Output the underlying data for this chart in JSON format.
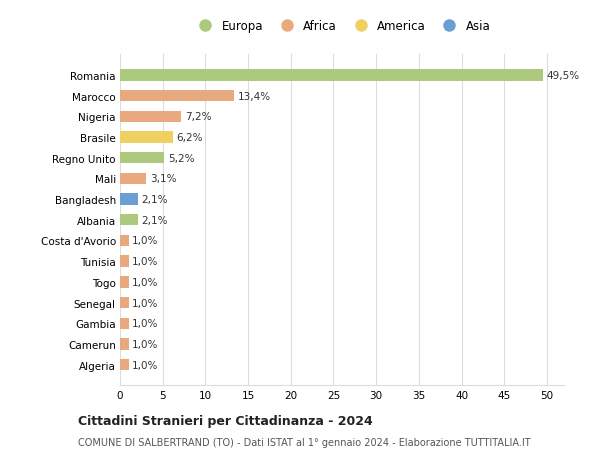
{
  "countries": [
    "Romania",
    "Marocco",
    "Nigeria",
    "Brasile",
    "Regno Unito",
    "Mali",
    "Bangladesh",
    "Albania",
    "Costa d'Avorio",
    "Tunisia",
    "Togo",
    "Senegal",
    "Gambia",
    "Camerun",
    "Algeria"
  ],
  "values": [
    49.5,
    13.4,
    7.2,
    6.2,
    5.2,
    3.1,
    2.1,
    2.1,
    1.0,
    1.0,
    1.0,
    1.0,
    1.0,
    1.0,
    1.0
  ],
  "labels": [
    "49,5%",
    "13,4%",
    "7,2%",
    "6,2%",
    "5,2%",
    "3,1%",
    "2,1%",
    "2,1%",
    "1,0%",
    "1,0%",
    "1,0%",
    "1,0%",
    "1,0%",
    "1,0%",
    "1,0%"
  ],
  "continents": [
    "Europa",
    "Africa",
    "Africa",
    "America",
    "Europa",
    "Africa",
    "Asia",
    "Europa",
    "Africa",
    "Africa",
    "Africa",
    "Africa",
    "Africa",
    "Africa",
    "Africa"
  ],
  "continent_colors": {
    "Europa": "#adc97e",
    "Africa": "#e8a97e",
    "America": "#f0d060",
    "Asia": "#6b9fd4"
  },
  "legend_order": [
    "Europa",
    "Africa",
    "America",
    "Asia"
  ],
  "title": "Cittadini Stranieri per Cittadinanza - 2024",
  "subtitle": "COMUNE DI SALBERTRAND (TO) - Dati ISTAT al 1° gennaio 2024 - Elaborazione TUTTITALIA.IT",
  "xlim": [
    0,
    52
  ],
  "xticks": [
    0,
    5,
    10,
    15,
    20,
    25,
    30,
    35,
    40,
    45,
    50
  ],
  "background_color": "#ffffff",
  "grid_color": "#dddddd",
  "label_fontsize": 7.5,
  "tick_fontsize": 7.5,
  "bar_height": 0.55
}
